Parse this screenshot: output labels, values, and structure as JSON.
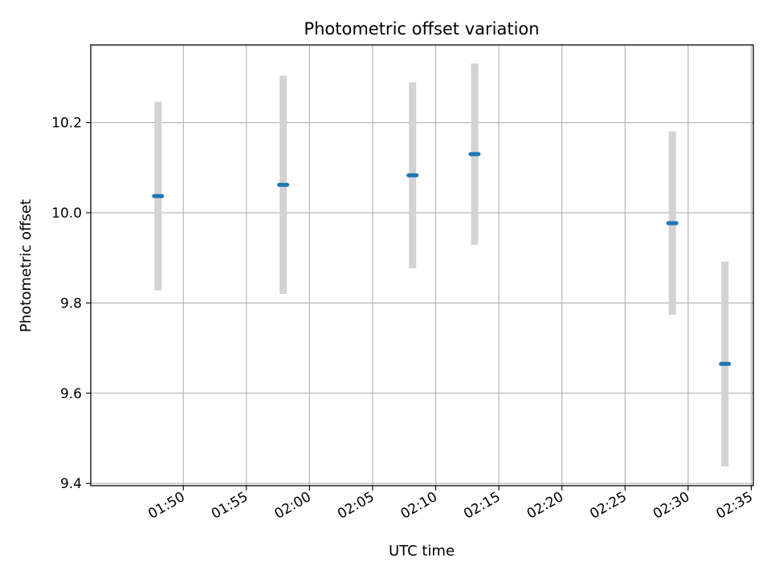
{
  "chart_data": {
    "type": "scatter",
    "title": "Photometric offset variation",
    "xlabel": "UTC time",
    "ylabel": "Photometric offset",
    "x_type": "time",
    "xlim": [
      "01:42:40",
      "02:35:10"
    ],
    "ylim": [
      9.395,
      10.372
    ],
    "x_ticks": [
      "01:50",
      "01:55",
      "02:00",
      "02:05",
      "02:10",
      "02:15",
      "02:20",
      "02:25",
      "02:30",
      "02:35"
    ],
    "y_ticks": [
      9.4,
      9.6,
      9.8,
      10.0,
      10.2
    ],
    "y_tick_labels": [
      "9.4",
      "9.6",
      "9.8",
      "10.0",
      "10.2"
    ],
    "grid": true,
    "series": [
      {
        "marker": "hline",
        "color": "#1f77b4",
        "error_color": "#d3d3d3",
        "points": [
          {
            "x": "01:48:00",
            "y": 10.037,
            "err": 0.209
          },
          {
            "x": "01:57:55",
            "y": 10.062,
            "err": 0.242
          },
          {
            "x": "02:08:10",
            "y": 10.083,
            "err": 0.206
          },
          {
            "x": "02:13:05",
            "y": 10.13,
            "err": 0.201
          },
          {
            "x": "02:28:45",
            "y": 9.977,
            "err": 0.203
          },
          {
            "x": "02:32:55",
            "y": 9.665,
            "err": 0.227
          }
        ]
      }
    ]
  }
}
